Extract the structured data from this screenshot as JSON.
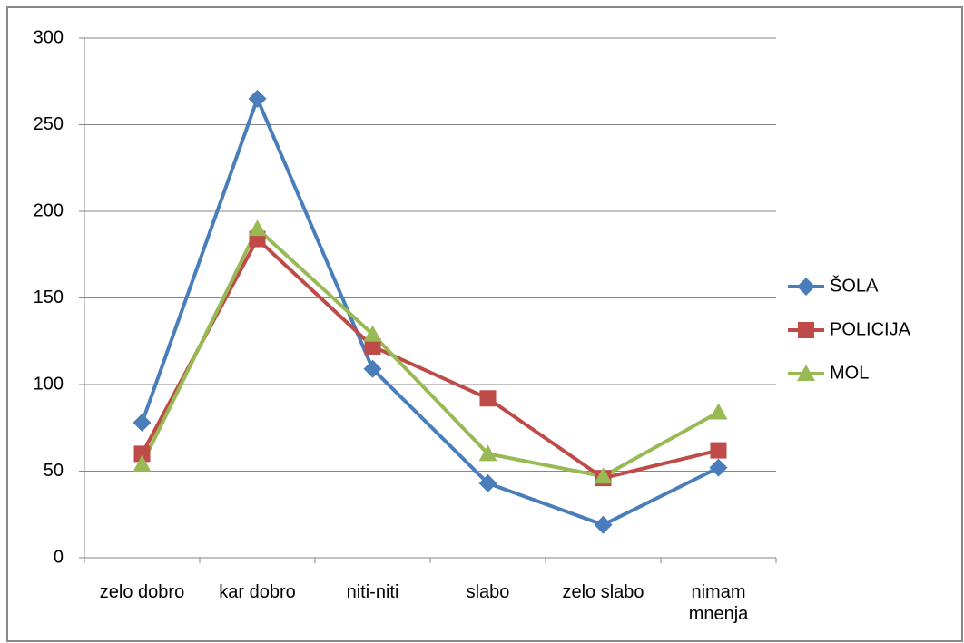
{
  "chart_data": {
    "type": "line",
    "categories": [
      "zelo dobro",
      "kar dobro",
      "niti-niti",
      "slabo",
      "zelo slabo",
      "nimam mnenja"
    ],
    "series": [
      {
        "name": "ŠOLA",
        "color": "#4a7ebb",
        "marker": "diamond",
        "values": [
          78,
          265,
          109,
          43,
          19,
          52
        ]
      },
      {
        "name": "POLICIJA",
        "color": "#be4b48",
        "marker": "square",
        "values": [
          60,
          184,
          122,
          92,
          46,
          62
        ]
      },
      {
        "name": "MOL",
        "color": "#98b954",
        "marker": "triangle",
        "values": [
          54,
          190,
          129,
          60,
          47,
          84
        ]
      }
    ],
    "ylim": [
      0,
      300
    ],
    "yticks": [
      0,
      50,
      100,
      150,
      200,
      250,
      300
    ],
    "grid": true,
    "legend": "right"
  }
}
